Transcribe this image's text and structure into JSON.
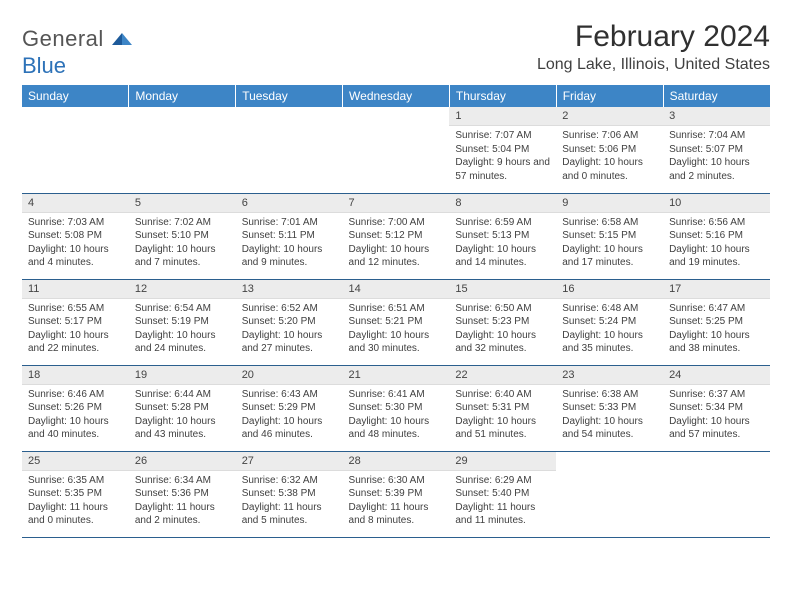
{
  "logo": {
    "line1": "General",
    "line2": "Blue"
  },
  "header": {
    "month": "February 2024",
    "location": "Long Lake, Illinois, United States"
  },
  "colors": {
    "header_bg": "#3d85c6",
    "header_text": "#ffffff",
    "daynum_bg": "#ececec",
    "rule": "#2b5f8e",
    "logo_blue": "#2d72b8"
  },
  "weekdays": [
    "Sunday",
    "Monday",
    "Tuesday",
    "Wednesday",
    "Thursday",
    "Friday",
    "Saturday"
  ],
  "weeks": [
    [
      null,
      null,
      null,
      null,
      {
        "n": "1",
        "sr": "Sunrise: 7:07 AM",
        "ss": "Sunset: 5:04 PM",
        "dl": "Daylight: 9 hours and 57 minutes."
      },
      {
        "n": "2",
        "sr": "Sunrise: 7:06 AM",
        "ss": "Sunset: 5:06 PM",
        "dl": "Daylight: 10 hours and 0 minutes."
      },
      {
        "n": "3",
        "sr": "Sunrise: 7:04 AM",
        "ss": "Sunset: 5:07 PM",
        "dl": "Daylight: 10 hours and 2 minutes."
      }
    ],
    [
      {
        "n": "4",
        "sr": "Sunrise: 7:03 AM",
        "ss": "Sunset: 5:08 PM",
        "dl": "Daylight: 10 hours and 4 minutes."
      },
      {
        "n": "5",
        "sr": "Sunrise: 7:02 AM",
        "ss": "Sunset: 5:10 PM",
        "dl": "Daylight: 10 hours and 7 minutes."
      },
      {
        "n": "6",
        "sr": "Sunrise: 7:01 AM",
        "ss": "Sunset: 5:11 PM",
        "dl": "Daylight: 10 hours and 9 minutes."
      },
      {
        "n": "7",
        "sr": "Sunrise: 7:00 AM",
        "ss": "Sunset: 5:12 PM",
        "dl": "Daylight: 10 hours and 12 minutes."
      },
      {
        "n": "8",
        "sr": "Sunrise: 6:59 AM",
        "ss": "Sunset: 5:13 PM",
        "dl": "Daylight: 10 hours and 14 minutes."
      },
      {
        "n": "9",
        "sr": "Sunrise: 6:58 AM",
        "ss": "Sunset: 5:15 PM",
        "dl": "Daylight: 10 hours and 17 minutes."
      },
      {
        "n": "10",
        "sr": "Sunrise: 6:56 AM",
        "ss": "Sunset: 5:16 PM",
        "dl": "Daylight: 10 hours and 19 minutes."
      }
    ],
    [
      {
        "n": "11",
        "sr": "Sunrise: 6:55 AM",
        "ss": "Sunset: 5:17 PM",
        "dl": "Daylight: 10 hours and 22 minutes."
      },
      {
        "n": "12",
        "sr": "Sunrise: 6:54 AM",
        "ss": "Sunset: 5:19 PM",
        "dl": "Daylight: 10 hours and 24 minutes."
      },
      {
        "n": "13",
        "sr": "Sunrise: 6:52 AM",
        "ss": "Sunset: 5:20 PM",
        "dl": "Daylight: 10 hours and 27 minutes."
      },
      {
        "n": "14",
        "sr": "Sunrise: 6:51 AM",
        "ss": "Sunset: 5:21 PM",
        "dl": "Daylight: 10 hours and 30 minutes."
      },
      {
        "n": "15",
        "sr": "Sunrise: 6:50 AM",
        "ss": "Sunset: 5:23 PM",
        "dl": "Daylight: 10 hours and 32 minutes."
      },
      {
        "n": "16",
        "sr": "Sunrise: 6:48 AM",
        "ss": "Sunset: 5:24 PM",
        "dl": "Daylight: 10 hours and 35 minutes."
      },
      {
        "n": "17",
        "sr": "Sunrise: 6:47 AM",
        "ss": "Sunset: 5:25 PM",
        "dl": "Daylight: 10 hours and 38 minutes."
      }
    ],
    [
      {
        "n": "18",
        "sr": "Sunrise: 6:46 AM",
        "ss": "Sunset: 5:26 PM",
        "dl": "Daylight: 10 hours and 40 minutes."
      },
      {
        "n": "19",
        "sr": "Sunrise: 6:44 AM",
        "ss": "Sunset: 5:28 PM",
        "dl": "Daylight: 10 hours and 43 minutes."
      },
      {
        "n": "20",
        "sr": "Sunrise: 6:43 AM",
        "ss": "Sunset: 5:29 PM",
        "dl": "Daylight: 10 hours and 46 minutes."
      },
      {
        "n": "21",
        "sr": "Sunrise: 6:41 AM",
        "ss": "Sunset: 5:30 PM",
        "dl": "Daylight: 10 hours and 48 minutes."
      },
      {
        "n": "22",
        "sr": "Sunrise: 6:40 AM",
        "ss": "Sunset: 5:31 PM",
        "dl": "Daylight: 10 hours and 51 minutes."
      },
      {
        "n": "23",
        "sr": "Sunrise: 6:38 AM",
        "ss": "Sunset: 5:33 PM",
        "dl": "Daylight: 10 hours and 54 minutes."
      },
      {
        "n": "24",
        "sr": "Sunrise: 6:37 AM",
        "ss": "Sunset: 5:34 PM",
        "dl": "Daylight: 10 hours and 57 minutes."
      }
    ],
    [
      {
        "n": "25",
        "sr": "Sunrise: 6:35 AM",
        "ss": "Sunset: 5:35 PM",
        "dl": "Daylight: 11 hours and 0 minutes."
      },
      {
        "n": "26",
        "sr": "Sunrise: 6:34 AM",
        "ss": "Sunset: 5:36 PM",
        "dl": "Daylight: 11 hours and 2 minutes."
      },
      {
        "n": "27",
        "sr": "Sunrise: 6:32 AM",
        "ss": "Sunset: 5:38 PM",
        "dl": "Daylight: 11 hours and 5 minutes."
      },
      {
        "n": "28",
        "sr": "Sunrise: 6:30 AM",
        "ss": "Sunset: 5:39 PM",
        "dl": "Daylight: 11 hours and 8 minutes."
      },
      {
        "n": "29",
        "sr": "Sunrise: 6:29 AM",
        "ss": "Sunset: 5:40 PM",
        "dl": "Daylight: 11 hours and 11 minutes."
      },
      null,
      null
    ]
  ]
}
